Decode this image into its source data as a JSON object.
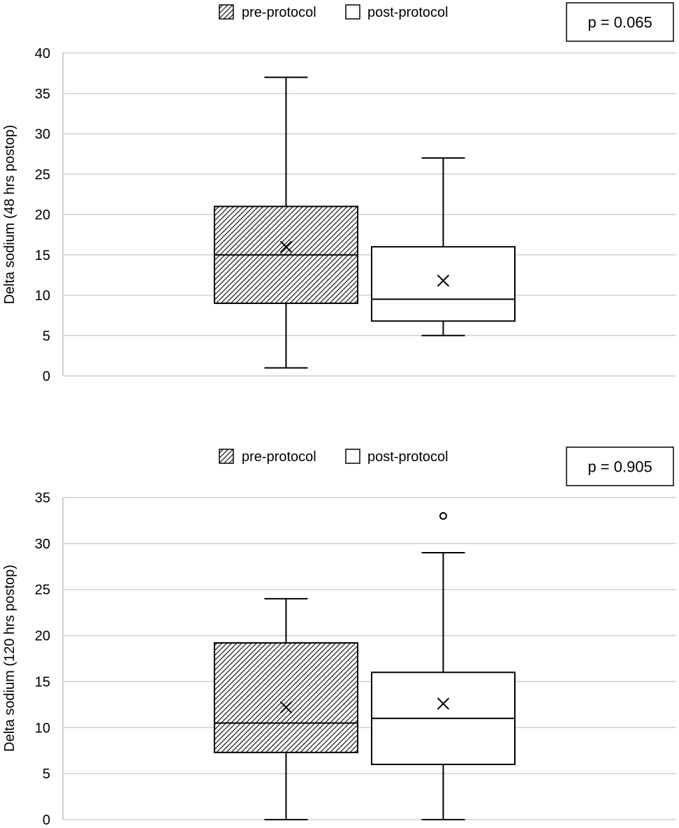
{
  "chart_data": [
    {
      "type": "boxplot",
      "ylabel": "Delta sodium (48 hrs postop)",
      "ylim": [
        0,
        40
      ],
      "yticks": [
        0,
        5,
        10,
        15,
        20,
        25,
        30,
        35,
        40
      ],
      "grid": true,
      "legend_position": "top-center",
      "annotation": "p = 0.065",
      "series": [
        {
          "name": "pre-protocol",
          "pattern": "hatched",
          "min": 1,
          "q1": 9,
          "median": 15,
          "q3": 21,
          "max": 37,
          "mean": 16,
          "outliers": []
        },
        {
          "name": "post-protocol",
          "pattern": "none",
          "min": 5,
          "q1": 6.8,
          "median": 9.5,
          "q3": 16,
          "max": 27,
          "mean": 11.8,
          "outliers": []
        }
      ]
    },
    {
      "type": "boxplot",
      "ylabel": "Delta sodium (120 hrs postop)",
      "ylim": [
        0,
        35
      ],
      "yticks": [
        0,
        5,
        10,
        15,
        20,
        25,
        30,
        35
      ],
      "grid": true,
      "legend_position": "top-center",
      "annotation": "p = 0.905",
      "series": [
        {
          "name": "pre-protocol",
          "pattern": "hatched",
          "min": 0,
          "q1": 7.3,
          "median": 10.5,
          "q3": 19.2,
          "max": 24,
          "mean": 12.2,
          "outliers": []
        },
        {
          "name": "post-protocol",
          "pattern": "none",
          "min": 0,
          "q1": 6,
          "median": 11,
          "q3": 16,
          "max": 29,
          "mean": 12.6,
          "outliers": [
            33
          ]
        }
      ]
    }
  ]
}
